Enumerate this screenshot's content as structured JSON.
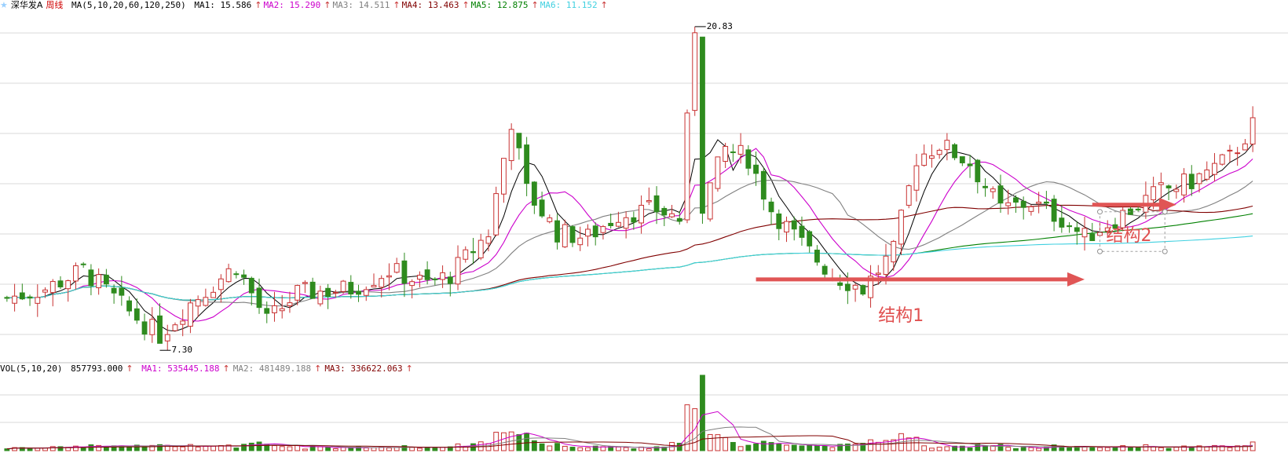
{
  "header": {
    "stock_name": "深华发A",
    "period": "周线",
    "ma_label": "MA(5,10,20,60,120,250)",
    "ma_values": [
      {
        "label": "MA1:",
        "value": "15.586",
        "color": "#000000"
      },
      {
        "label": "MA2:",
        "value": "15.290",
        "color": "#cc00cc"
      },
      {
        "label": "MA3:",
        "value": "14.511",
        "color": "#808080"
      },
      {
        "label": "MA4:",
        "value": "13.463",
        "color": "#800000"
      },
      {
        "label": "MA5:",
        "value": "12.875",
        "color": "#008000"
      },
      {
        "label": "MA6:",
        "value": "11.152",
        "color": "#40d0e0"
      }
    ],
    "arrow": "↑"
  },
  "volume_header": {
    "label": "VOL(5,10,20)",
    "value": "857793.000",
    "ma_values": [
      {
        "label": "MA1:",
        "value": "535445.188",
        "color": "#cc00cc"
      },
      {
        "label": "MA2:",
        "value": "481489.188",
        "color": "#808080"
      },
      {
        "label": "MA3:",
        "value": "336622.063",
        "color": "#800000"
      }
    ]
  },
  "annotations": {
    "high_label": "20.83",
    "low_label": "7.30",
    "structure1": "结构1",
    "structure2": "结构2"
  },
  "colors": {
    "up": "#c83232",
    "down": "#2e8b1e",
    "grid": "#d8d8d8",
    "arrow": "#e05555"
  },
  "chart_data": {
    "type": "candlestick",
    "title": "深华发A 周线",
    "price_extremes": {
      "high": 20.83,
      "low": 7.3
    },
    "last_ma": {
      "MA1": 15.586,
      "MA2": 15.29,
      "MA3": 14.511,
      "MA4": 13.463,
      "MA5": 12.875,
      "MA6": 11.152
    },
    "series": [
      {
        "name": "MA1",
        "period": 5
      },
      {
        "name": "MA2",
        "period": 10
      },
      {
        "name": "MA3",
        "period": 20
      },
      {
        "name": "MA4",
        "period": 60
      },
      {
        "name": "MA5",
        "period": 120
      },
      {
        "name": "MA6",
        "period": 250
      }
    ],
    "volume": {
      "last": 857793.0,
      "MA1": 535445.188,
      "MA2": 481489.188,
      "MA3": 336622.063
    },
    "price_path": [
      [
        0,
        9.2
      ],
      [
        5,
        9.6
      ],
      [
        10,
        10.4
      ],
      [
        12,
        9.8
      ],
      [
        16,
        8.6
      ],
      [
        20,
        7.6
      ],
      [
        24,
        9.0
      ],
      [
        30,
        10.6
      ],
      [
        34,
        8.2
      ],
      [
        38,
        9.4
      ],
      [
        45,
        9.6
      ],
      [
        50,
        10.4
      ],
      [
        55,
        9.8
      ],
      [
        58,
        10.2
      ],
      [
        63,
        12.0
      ],
      [
        66,
        16.8
      ],
      [
        68,
        13.8
      ],
      [
        72,
        12.0
      ],
      [
        76,
        11.8
      ],
      [
        80,
        12.8
      ],
      [
        85,
        13.0
      ],
      [
        88,
        12.6
      ],
      [
        90,
        20.8
      ],
      [
        91,
        13.2
      ],
      [
        94,
        15.6
      ],
      [
        97,
        15.2
      ],
      [
        100,
        13.0
      ],
      [
        104,
        11.5
      ],
      [
        108,
        10.2
      ],
      [
        112,
        9.6
      ],
      [
        116,
        11.2
      ],
      [
        119,
        15.2
      ],
      [
        122,
        15.8
      ],
      [
        126,
        15.0
      ],
      [
        130,
        13.0
      ],
      [
        134,
        13.3
      ],
      [
        138,
        12.6
      ],
      [
        141,
        11.8
      ],
      [
        144,
        12.4
      ],
      [
        148,
        13.2
      ],
      [
        151,
        13.8
      ],
      [
        155,
        14.2
      ],
      [
        160,
        15.2
      ],
      [
        163,
        16.6
      ]
    ],
    "y_range": [
      6.5,
      21.5
    ],
    "grid": true
  }
}
